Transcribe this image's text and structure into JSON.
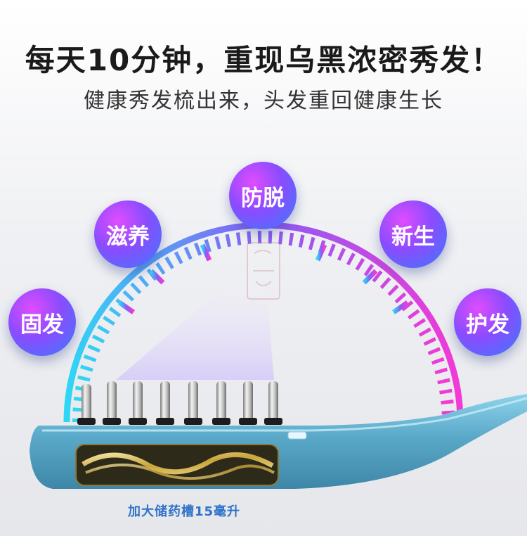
{
  "headline": "每天10分钟，重现乌黑浓密秀发！",
  "subheadline": "健康秀发梳出来，头发重回健康生长",
  "benefits": [
    {
      "label": "固发"
    },
    {
      "label": "滋养"
    },
    {
      "label": "防脱"
    },
    {
      "label": "新生"
    },
    {
      "label": "护发"
    }
  ],
  "product_caption": "加大储药槽15毫升",
  "colors": {
    "gauge_start": "#2fd7f5",
    "gauge_mid": "#8a5cf5",
    "gauge_end": "#f23ad6",
    "comb_body": "#5aa9c9",
    "badge_purple": "#b84cff",
    "badge_blue": "#3a7bff"
  },
  "icons": [
    "comb-pin-icon",
    "reservoir-icon",
    "seal-stamp-icon"
  ]
}
